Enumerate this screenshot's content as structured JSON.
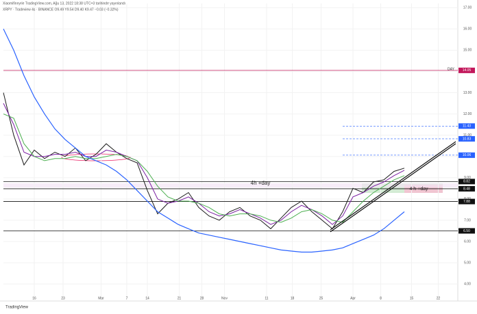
{
  "chart_data": {
    "type": "line",
    "title": "Xiaomifinnyrie TradingView.com, Ağu 13, 2022 18:38 UTC+3 tarihinde yayınlandı",
    "subtitle": "XRPY · Tradeview 4s · BINANCE   O9.49  Y9.54  D9.40  K9.47  −0.03 (−0.32%)",
    "footer": "TradingView",
    "x": [
      0,
      1,
      2,
      3,
      4,
      5,
      6,
      7,
      8,
      9,
      10,
      11,
      12,
      13,
      14,
      15,
      16,
      17,
      18,
      19,
      20,
      21,
      22,
      23,
      24,
      25,
      26,
      27,
      28,
      29,
      30,
      31,
      32,
      33,
      34,
      35,
      36,
      37,
      38,
      39
    ],
    "xlim": [
      0,
      44.2
    ],
    "xticks": [
      {
        "value": 3,
        "label": "16"
      },
      {
        "value": 5.8,
        "label": "23"
      },
      {
        "value": 9.5,
        "label": "Mar"
      },
      {
        "value": 12,
        "label": "7"
      },
      {
        "value": 14,
        "label": "14"
      },
      {
        "value": 17.1,
        "label": "21"
      },
      {
        "value": 19.3,
        "label": "28"
      },
      {
        "value": 21.5,
        "label": "Nov"
      },
      {
        "value": 25.6,
        "label": "11"
      },
      {
        "value": 28.1,
        "label": "18"
      },
      {
        "value": 30.9,
        "label": "25"
      },
      {
        "value": 34,
        "label": "Apr"
      },
      {
        "value": 36.7,
        "label": "8"
      },
      {
        "value": 39.7,
        "label": "15"
      },
      {
        "value": 42.3,
        "label": "22"
      }
    ],
    "ylim": [
      3.2,
      17.2
    ],
    "yticks": [
      {
        "value": 4,
        "label": "4.00"
      },
      {
        "value": 5,
        "label": "5.00"
      },
      {
        "value": 6,
        "label": "6.00"
      },
      {
        "value": 7,
        "label": "7.00"
      },
      {
        "value": 8,
        "label": "8.00"
      },
      {
        "value": 9,
        "label": "9.00"
      },
      {
        "value": 10,
        "label": "10.00"
      },
      {
        "value": 11,
        "label": "11.00"
      },
      {
        "value": 12,
        "label": "12.00"
      },
      {
        "value": 13,
        "label": "13.00"
      },
      {
        "value": 14,
        "label": "14.00"
      },
      {
        "value": 15,
        "label": "15.00"
      },
      {
        "value": 16,
        "label": "16.00"
      },
      {
        "value": 17,
        "label": "17.00"
      }
    ],
    "series": [
      {
        "color": "#1a1a1a",
        "width": 1,
        "values": [
          13.0,
          11.0,
          9.6,
          10.3,
          9.9,
          10.2,
          10.0,
          10.4,
          9.8,
          10.1,
          10.6,
          10.2,
          9.9,
          9.7,
          8.4,
          7.3,
          7.8,
          8.0,
          8.3,
          7.6,
          7.2,
          7.0,
          7.4,
          7.6,
          7.2,
          7.0,
          6.6,
          7.1,
          7.6,
          7.9,
          7.4,
          7.0,
          6.6,
          7.4,
          8.5,
          8.3,
          8.8,
          8.9,
          9.3,
          9.45
        ]
      },
      {
        "color": "#7b1fa2",
        "width": 1,
        "values": [
          12.5,
          11.5,
          10.2,
          10.0,
          10.0,
          10.1,
          10.1,
          10.2,
          10.0,
          10.0,
          10.3,
          10.2,
          10.0,
          9.8,
          9.0,
          8.0,
          7.8,
          7.9,
          8.1,
          7.8,
          7.4,
          7.2,
          7.3,
          7.5,
          7.3,
          7.1,
          6.8,
          7.0,
          7.4,
          7.7,
          7.5,
          7.2,
          6.8,
          7.2,
          8.1,
          8.3,
          8.6,
          8.8,
          9.1,
          9.35
        ]
      },
      {
        "color": "#4caf50",
        "width": 1,
        "values": [
          12.0,
          11.8,
          10.6,
          10.0,
          9.8,
          9.9,
          9.9,
          10.0,
          9.9,
          9.9,
          10.0,
          10.1,
          10.0,
          9.8,
          9.3,
          8.6,
          8.1,
          7.9,
          7.9,
          7.8,
          7.6,
          7.3,
          7.2,
          7.3,
          7.3,
          7.2,
          7.0,
          6.9,
          7.1,
          7.4,
          7.5,
          7.3,
          7.0,
          6.9,
          7.4,
          7.9,
          8.3,
          8.6,
          8.9,
          9.1
        ]
      },
      {
        "color": "#2962ff",
        "width": 1.2,
        "values": [
          16.0,
          15.0,
          13.8,
          12.8,
          12.0,
          11.3,
          10.8,
          10.4,
          10.0,
          9.8,
          9.6,
          9.3,
          8.9,
          8.4,
          7.9,
          7.4,
          7.1,
          6.8,
          6.6,
          6.4,
          6.3,
          6.2,
          6.1,
          6.0,
          5.9,
          5.8,
          5.7,
          5.6,
          5.55,
          5.5,
          5.5,
          5.55,
          5.6,
          5.7,
          5.9,
          6.1,
          6.3,
          6.6,
          7.0,
          7.4
        ]
      }
    ],
    "levels": [
      {
        "value": 14.05,
        "label": "14.05",
        "color": "#c2185b",
        "dashed": false
      },
      {
        "value": 11.43,
        "label": "11.43",
        "color": "#2962ff",
        "dashed": true
      },
      {
        "value": 10.83,
        "label": "10.83",
        "color": "#2962ff",
        "dashed": true
      },
      {
        "value": 10.06,
        "label": "10.06",
        "color": "#2962ff",
        "dashed": true
      },
      {
        "value": 8.82,
        "label": "8.82",
        "color": "#111111",
        "dashed": false
      },
      {
        "value": 8.48,
        "label": "8.48",
        "color": "#111111",
        "dashed": false
      },
      {
        "value": 7.88,
        "label": "7.88",
        "color": "#111111",
        "dashed": false
      },
      {
        "value": 6.5,
        "label": "6.50",
        "color": "#111111",
        "dashed": false
      }
    ],
    "trendline": {
      "x": [
        31.8,
        44
      ],
      "y": [
        6.55,
        10.7
      ]
    },
    "annotations": [
      "DAY",
      "4h +day",
      "4 h +day"
    ]
  }
}
